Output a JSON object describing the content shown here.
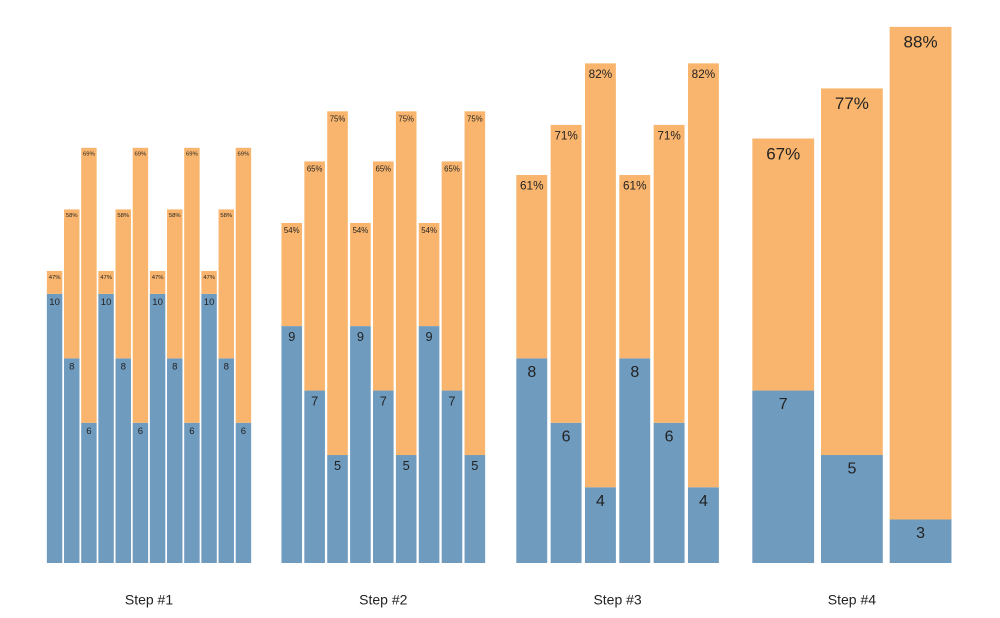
{
  "chart_data": {
    "type": "stacked_bar",
    "colors": [
      "#6f9bbf",
      "#f9b56d"
    ],
    "ylim": [
      1.65,
      18
    ],
    "y2lim": [
      45,
      91
    ],
    "groups": [
      {
        "label": "Step #1",
        "values": [
          10,
          8,
          6,
          10,
          8,
          6,
          10,
          8,
          6,
          10,
          8,
          6
        ],
        "percent_values": [
          47,
          58,
          69,
          47,
          58,
          69,
          47,
          58,
          69,
          47,
          58,
          69
        ],
        "value_labels": [
          "47%",
          "58%",
          "69%",
          "47%",
          "58%",
          "69%",
          "47%",
          "58%",
          "69%",
          "47%",
          "58%",
          "69%"
        ]
      },
      {
        "label": "Step #2",
        "values": [
          9,
          7,
          5,
          9,
          7,
          5,
          9,
          7,
          5
        ],
        "percent_values": [
          54,
          65,
          75,
          54,
          65,
          75,
          54,
          65,
          75
        ],
        "value_labels": [
          "54%",
          "65%",
          "75%",
          "54%",
          "65%",
          "75%",
          "54%",
          "65%",
          "75%"
        ]
      },
      {
        "label": "Step #3",
        "values": [
          8,
          6,
          4,
          8,
          6,
          4
        ],
        "percent_values": [
          61,
          71,
          82,
          61,
          71,
          82
        ],
        "value_labels": [
          "61%",
          "71%",
          "82%",
          "61%",
          "71%",
          "82%"
        ]
      },
      {
        "label": "Step #4",
        "values": [
          7,
          5,
          3
        ],
        "percent_values": [
          67,
          77,
          88
        ],
        "value_labels": [
          "67%",
          "77%",
          "88%"
        ]
      }
    ]
  }
}
